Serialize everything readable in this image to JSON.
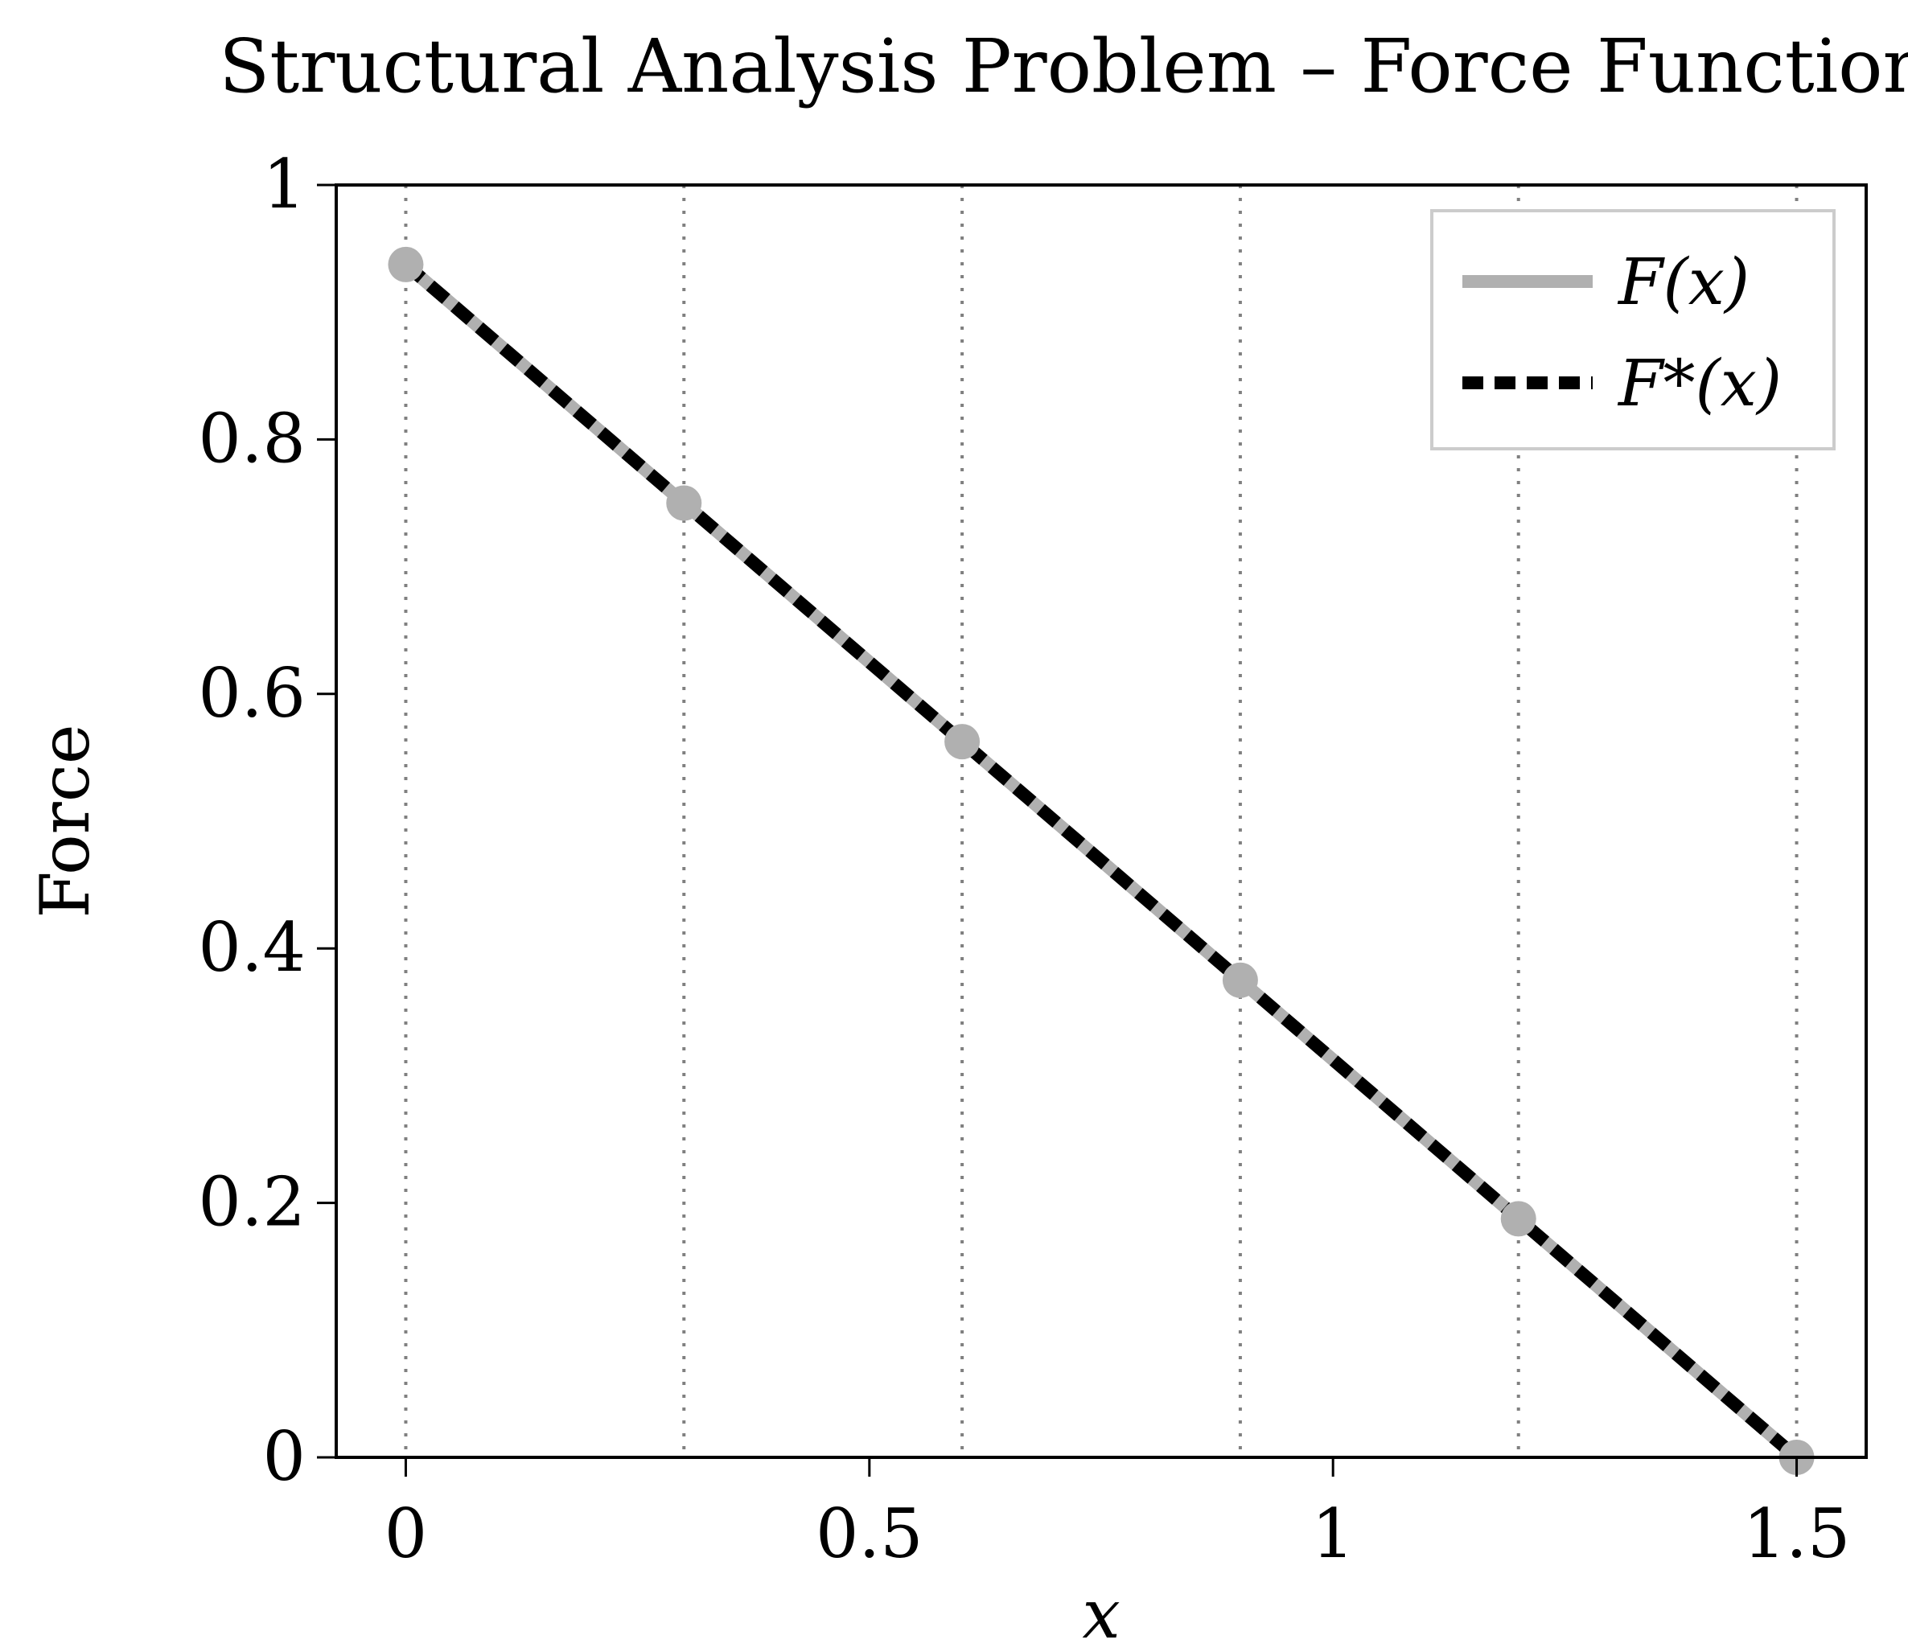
{
  "chart_data": {
    "type": "line",
    "title": "Structural Analysis Problem – Force Function",
    "xlabel": "x",
    "ylabel": "Force",
    "xlim": [
      -0.075,
      1.575
    ],
    "ylim": [
      0,
      1
    ],
    "xticks": [
      0,
      0.5,
      1,
      1.5
    ],
    "xtick_labels": [
      "0",
      "0.5",
      "1",
      "1.5"
    ],
    "yticks": [
      0,
      0.2,
      0.4,
      0.6,
      0.8,
      1
    ],
    "ytick_labels": [
      "0",
      "0.2",
      "0.4",
      "0.6",
      "0.8",
      "1"
    ],
    "vgrid_x": [
      0,
      0.3,
      0.6,
      0.9,
      1.2,
      1.5
    ],
    "grid": "vertical dotted",
    "legend_position": "top-right",
    "series": [
      {
        "name": "F(x)",
        "style": "solid",
        "color": "#b0b0b0",
        "x": [
          0,
          1.5
        ],
        "y": [
          0.9375,
          0
        ]
      },
      {
        "name": "F*(x)",
        "style": "dashed",
        "color": "#000000",
        "x": [
          0,
          1.5
        ],
        "y": [
          0.9375,
          0
        ]
      }
    ],
    "markers": {
      "series": "F(x)",
      "color": "#b0b0b0",
      "x": [
        0,
        0.3,
        0.6,
        0.9,
        1.2,
        1.5
      ],
      "y": [
        0.9375,
        0.75,
        0.5625,
        0.375,
        0.1875,
        0
      ]
    }
  }
}
